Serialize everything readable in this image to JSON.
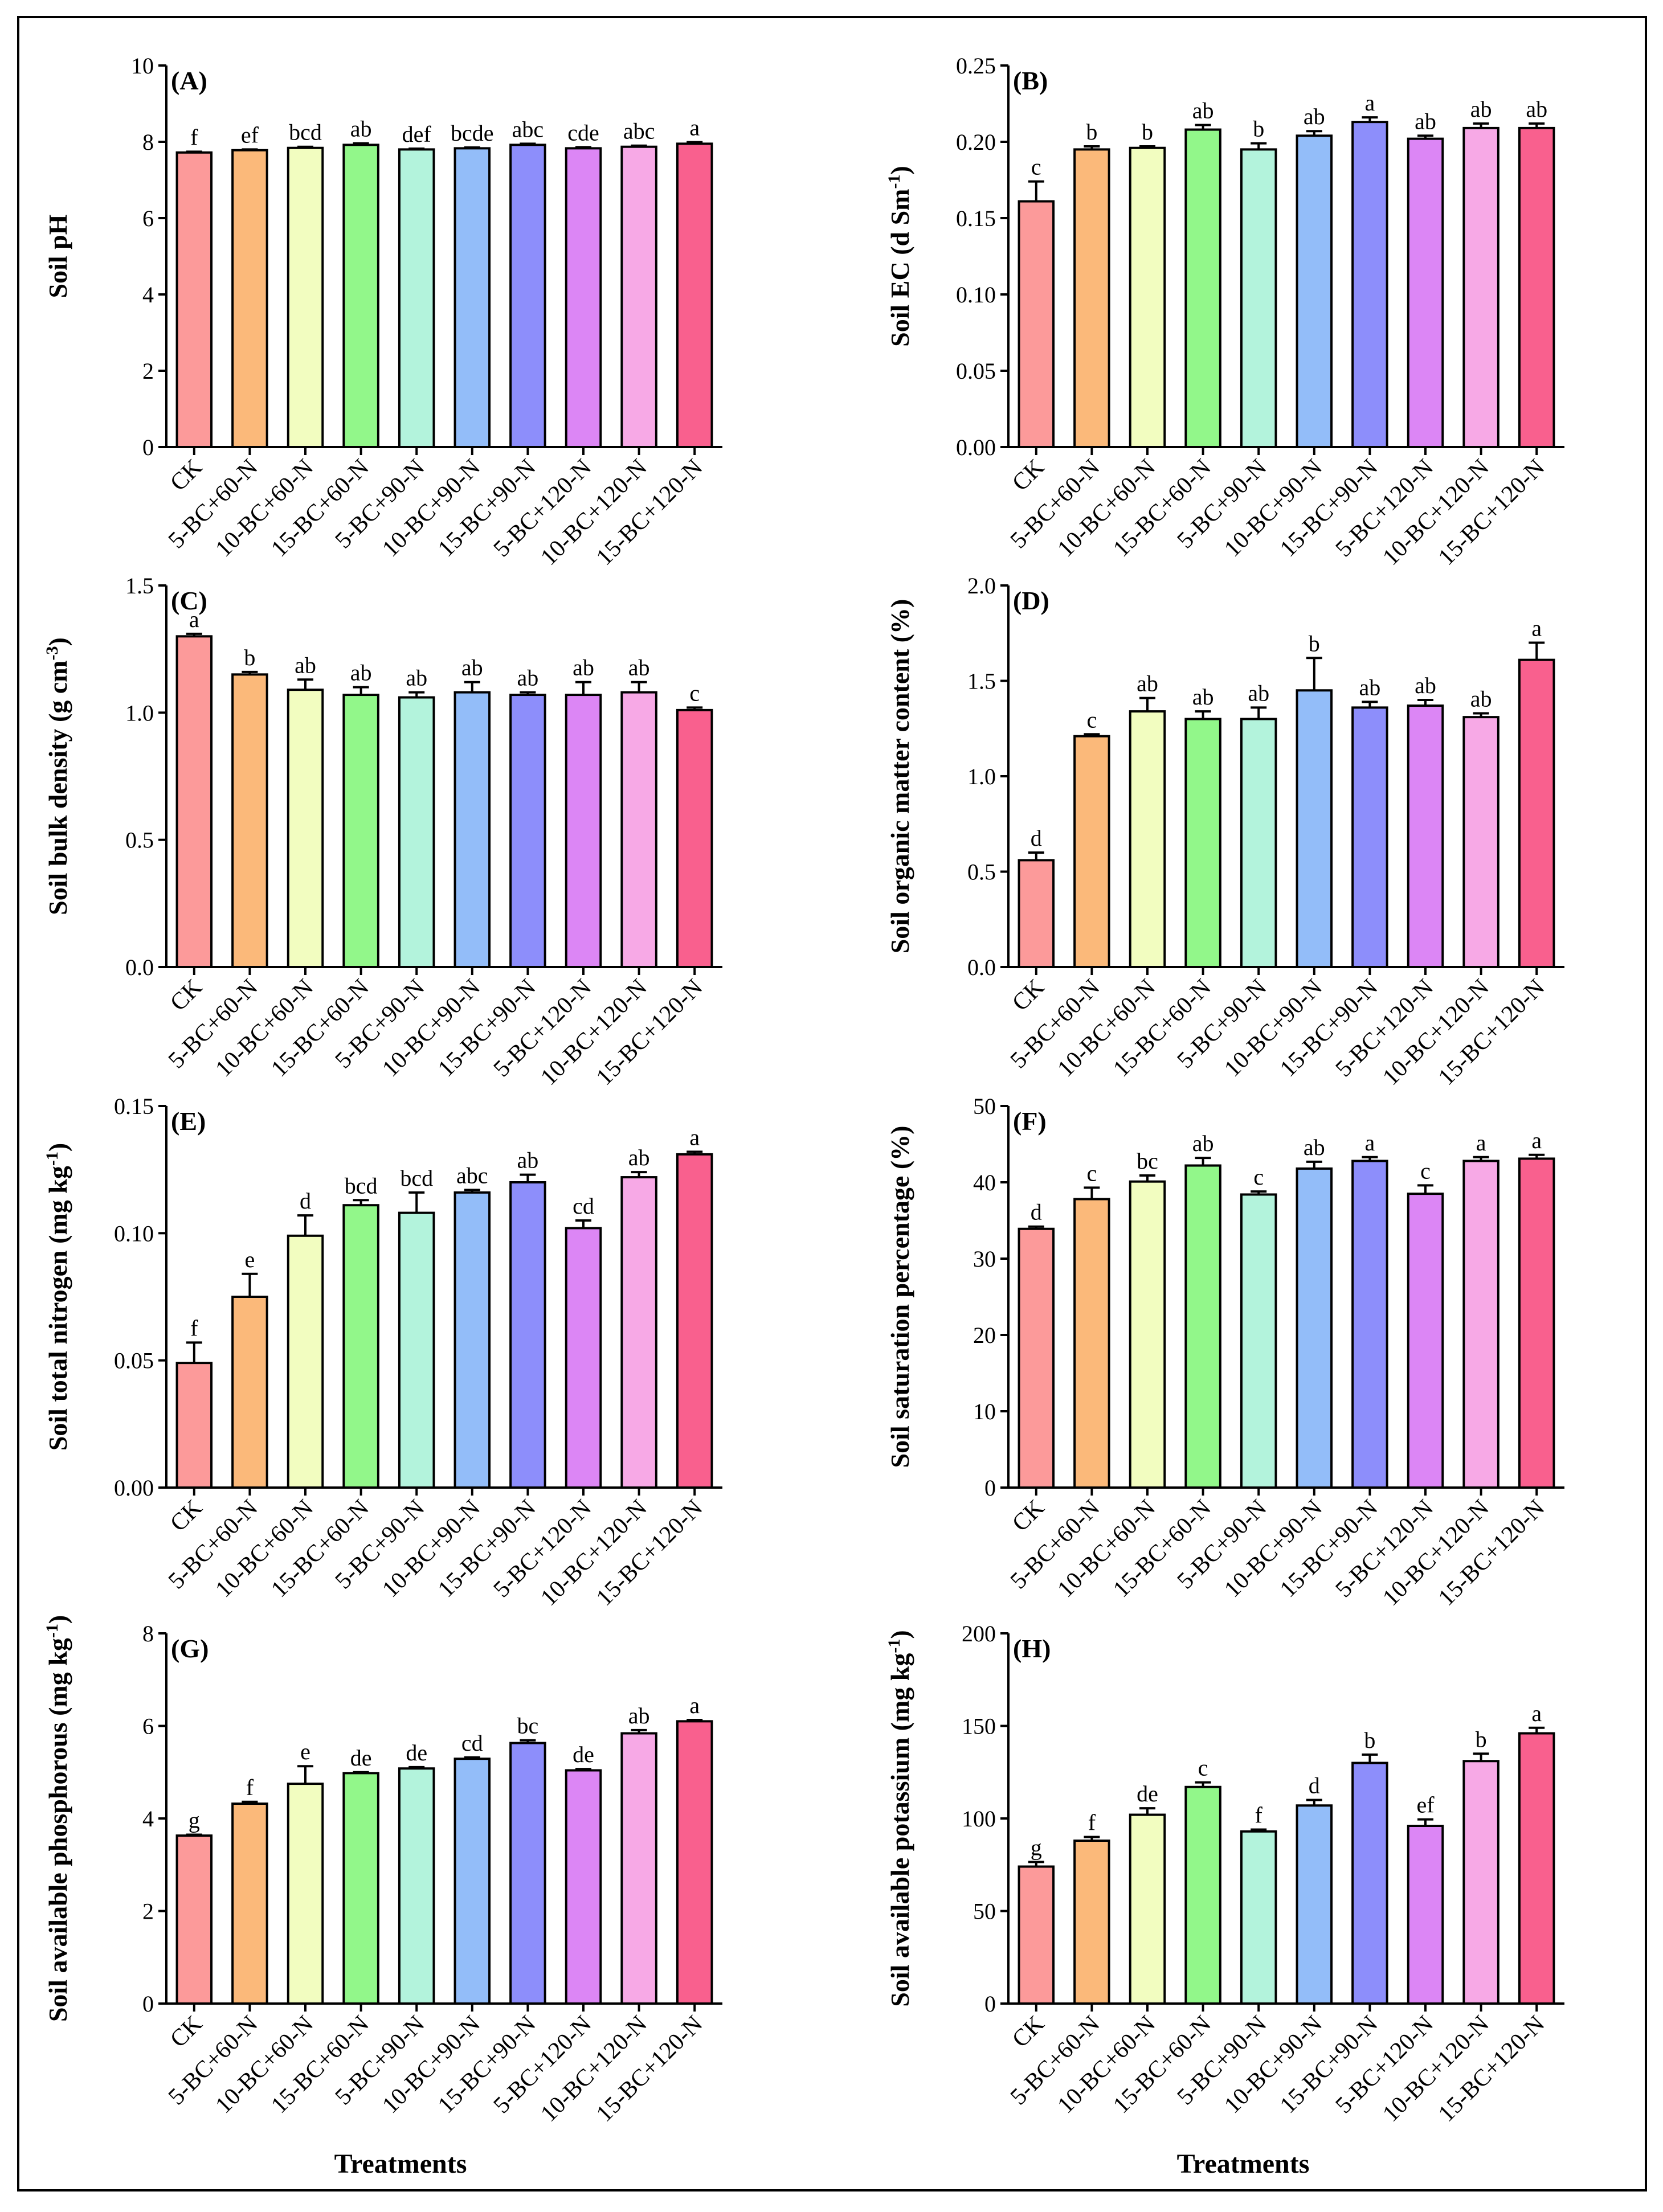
{
  "figure": {
    "xlabel": "Treatments",
    "categories": [
      "CK",
      "5-BC+60-N",
      "10-BC+60-N",
      "15-BC+60-N",
      "5-BC+90-N",
      "10-BC+90-N",
      "15-BC+90-N",
      "5-BC+120-N",
      "10-BC+120-N",
      "15-BC+120-N"
    ],
    "bar_colors": [
      "#fc9a9a",
      "#fbb97a",
      "#f2fdc0",
      "#92f78a",
      "#b3f3dc",
      "#93bdf9",
      "#8d8efb",
      "#dc86f5",
      "#f7a9e6",
      "#f9608e"
    ]
  },
  "chart_data": [
    {
      "panel": "(A)",
      "type": "bar",
      "ylabel": "Soil pH",
      "ylabel_sup": "",
      "ylabel_after": "",
      "ylim": [
        0,
        10
      ],
      "yticks": [
        0,
        2,
        4,
        6,
        8,
        10
      ],
      "ytick_labels": [
        "0",
        "2",
        "4",
        "6",
        "8",
        "10"
      ],
      "values": [
        7.72,
        7.78,
        7.84,
        7.92,
        7.8,
        7.83,
        7.92,
        7.83,
        7.87,
        7.95
      ],
      "errors": [
        0.02,
        0.02,
        0.03,
        0.04,
        0.02,
        0.02,
        0.03,
        0.03,
        0.03,
        0.04
      ],
      "letters": [
        "f",
        "ef",
        "bcd",
        "ab",
        "def",
        "bcde",
        "abc",
        "cde",
        "abc",
        "a"
      ]
    },
    {
      "panel": "(B)",
      "type": "bar",
      "ylabel": "Soil EC (d Sm",
      "ylabel_sup": "-1",
      "ylabel_after": ")",
      "ylim": [
        0,
        0.25
      ],
      "yticks": [
        0,
        0.05,
        0.1,
        0.15,
        0.2,
        0.25
      ],
      "ytick_labels": [
        "0.00",
        "0.05",
        "0.10",
        "0.15",
        "0.20",
        "0.25"
      ],
      "values": [
        0.161,
        0.195,
        0.196,
        0.208,
        0.195,
        0.204,
        0.213,
        0.202,
        0.209,
        0.209
      ],
      "errors": [
        0.013,
        0.002,
        0.001,
        0.003,
        0.004,
        0.003,
        0.003,
        0.002,
        0.003,
        0.003
      ],
      "letters": [
        "c",
        "b",
        "b",
        "ab",
        "b",
        "ab",
        "a",
        "ab",
        "ab",
        "ab"
      ]
    },
    {
      "panel": "(C)",
      "type": "bar",
      "ylabel": "Soil bulk density (g cm",
      "ylabel_sup": "-3",
      "ylabel_after": ")",
      "ylim": [
        0,
        1.5
      ],
      "yticks": [
        0,
        0.5,
        1.0,
        1.5
      ],
      "ytick_labels": [
        "0.0",
        "0.5",
        "1.0",
        "1.5"
      ],
      "values": [
        1.3,
        1.15,
        1.09,
        1.07,
        1.06,
        1.08,
        1.07,
        1.07,
        1.08,
        1.01
      ],
      "errors": [
        0.01,
        0.01,
        0.04,
        0.03,
        0.02,
        0.04,
        0.01,
        0.05,
        0.04,
        0.01
      ],
      "letters": [
        "a",
        "b",
        "ab",
        "ab",
        "ab",
        "ab",
        "ab",
        "ab",
        "ab",
        "c"
      ]
    },
    {
      "panel": "(D)",
      "type": "bar",
      "ylabel": "Soil organic matter content (%)",
      "ylabel_sup": "",
      "ylabel_after": "",
      "ylim": [
        0,
        2.0
      ],
      "yticks": [
        0,
        0.5,
        1.0,
        1.5,
        2.0
      ],
      "ytick_labels": [
        "0.0",
        "0.5",
        "1.0",
        "1.5",
        "2.0"
      ],
      "values": [
        0.56,
        1.21,
        1.34,
        1.3,
        1.3,
        1.45,
        1.36,
        1.37,
        1.31,
        1.61
      ],
      "errors": [
        0.04,
        0.01,
        0.07,
        0.04,
        0.06,
        0.17,
        0.03,
        0.03,
        0.02,
        0.09
      ],
      "letters": [
        "d",
        "c",
        "ab",
        "ab",
        "ab",
        "b",
        "ab",
        "ab",
        "ab",
        "a"
      ]
    },
    {
      "panel": "(E)",
      "type": "bar",
      "ylabel": "Soil total nitrogen (mg kg",
      "ylabel_sup": "-1",
      "ylabel_after": ")",
      "ylim": [
        0,
        0.15
      ],
      "yticks": [
        0,
        0.05,
        0.1,
        0.15
      ],
      "ytick_labels": [
        "0.00",
        "0.05",
        "0.10",
        "0.15"
      ],
      "values": [
        0.049,
        0.075,
        0.099,
        0.111,
        0.108,
        0.116,
        0.12,
        0.102,
        0.122,
        0.131
      ],
      "errors": [
        0.008,
        0.009,
        0.008,
        0.002,
        0.008,
        0.001,
        0.003,
        0.003,
        0.002,
        0.001
      ],
      "letters": [
        "f",
        "e",
        "d",
        "bcd",
        "bcd",
        "abc",
        "ab",
        "cd",
        "ab",
        "a"
      ]
    },
    {
      "panel": "(F)",
      "type": "bar",
      "ylabel": "Soil saturation percentage (%)",
      "ylabel_sup": "",
      "ylabel_after": "",
      "ylim": [
        0,
        50
      ],
      "yticks": [
        0,
        10,
        20,
        30,
        40,
        50
      ],
      "ytick_labels": [
        "0",
        "10",
        "20",
        "30",
        "40",
        "50"
      ],
      "values": [
        33.9,
        37.8,
        40.1,
        42.2,
        38.4,
        41.8,
        42.8,
        38.5,
        42.8,
        43.1
      ],
      "errors": [
        0.3,
        1.5,
        0.8,
        1.0,
        0.4,
        0.9,
        0.5,
        1.1,
        0.5,
        0.5
      ],
      "letters": [
        "d",
        "c",
        "bc",
        "ab",
        "c",
        "ab",
        "a",
        "c",
        "a",
        "a"
      ]
    },
    {
      "panel": "(G)",
      "type": "bar",
      "ylabel": "Soil available phosphorous (mg kg",
      "ylabel_sup": "-1",
      "ylabel_after": ")",
      "ylim": [
        0,
        8
      ],
      "yticks": [
        0,
        2,
        4,
        6,
        8
      ],
      "ytick_labels": [
        "0",
        "2",
        "4",
        "6",
        "8"
      ],
      "values": [
        3.63,
        4.32,
        4.75,
        4.98,
        5.08,
        5.29,
        5.63,
        5.04,
        5.84,
        6.1
      ],
      "errors": [
        0.02,
        0.04,
        0.38,
        0.02,
        0.03,
        0.03,
        0.06,
        0.03,
        0.07,
        0.03
      ],
      "letters": [
        "g",
        "f",
        "e",
        "de",
        "de",
        "cd",
        "bc",
        "de",
        "ab",
        "a"
      ]
    },
    {
      "panel": "(H)",
      "type": "bar",
      "ylabel": "Soil available potassium (mg kg",
      "ylabel_sup": "-1",
      "ylabel_after": ")",
      "ylim": [
        0,
        200
      ],
      "yticks": [
        0,
        50,
        100,
        150,
        200
      ],
      "ytick_labels": [
        "0",
        "50",
        "100",
        "150",
        "200"
      ],
      "values": [
        74,
        88,
        102,
        117,
        93,
        107,
        130,
        96,
        131,
        146
      ],
      "errors": [
        2.5,
        2.0,
        3.5,
        2.5,
        1.0,
        3.0,
        4.5,
        3.5,
        4.0,
        3.0
      ],
      "letters": [
        "g",
        "f",
        "de",
        "c",
        "f",
        "d",
        "b",
        "ef",
        "b",
        "a"
      ]
    }
  ]
}
